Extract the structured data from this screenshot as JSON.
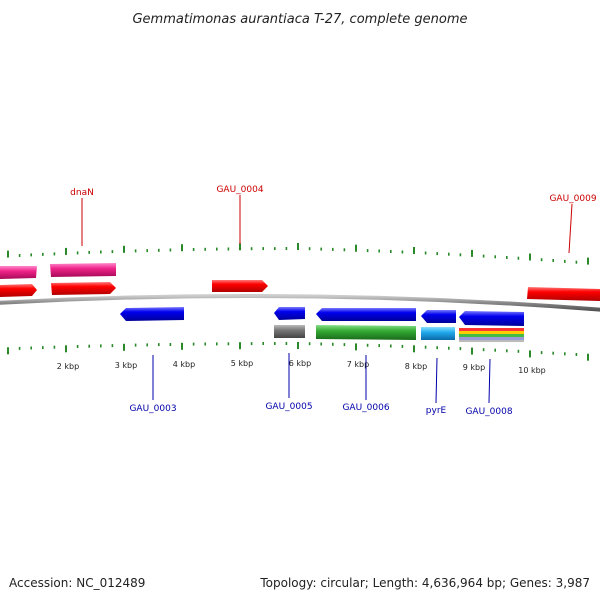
{
  "title": "Gemmatimonas aurantiaca T-27, complete genome",
  "scale_labels": [
    "2 kbp",
    "3 kbp",
    "4 kbp",
    "5 kbp",
    "6 kbp",
    "7 kbp",
    "8 kbp",
    "9 kbp",
    "10 kbp"
  ],
  "forward_genes": [
    {
      "label": "dnaN"
    },
    {
      "label": "GAU_0004"
    },
    {
      "label": "GAU_0009"
    }
  ],
  "reverse_genes": [
    {
      "label": "GAU_0003"
    },
    {
      "label": "GAU_0005"
    },
    {
      "label": "GAU_0006"
    },
    {
      "label": "pyrE"
    },
    {
      "label": "GAU_0008"
    }
  ],
  "footer": {
    "accession": "Accession: NC_012489",
    "summary": "Topology: circular; Length: 4,636,964 bp; Genes: 3,987"
  },
  "colors": {
    "forward_gene": "#ff0000",
    "forward_label": "#cc0000",
    "reverse_gene": "#0000ee",
    "reverse_label": "#0000aa",
    "forward_cds_pink": "#ee2288",
    "tick": "#2a8a2a",
    "backbone": "#888888"
  }
}
